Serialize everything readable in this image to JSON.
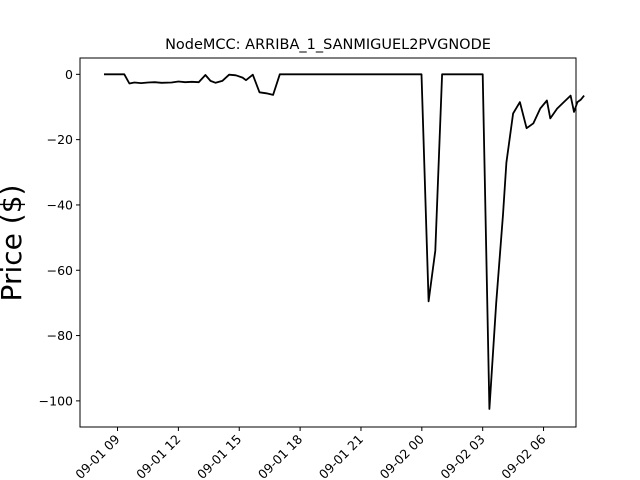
{
  "chart_data": {
    "type": "line",
    "title": "NodeMCC: ARRIBA_1_SANMIGUEL2PVGNODE",
    "xlabel": "",
    "ylabel": "Price ($)",
    "x_axis": "datetime",
    "xlim": [
      "2023-09-01 07:09",
      "2023-09-02 07:36"
    ],
    "ylim": [
      -108,
      5
    ],
    "x_ticks": [
      "2023-09-01 09:00",
      "2023-09-01 12:00",
      "2023-09-01 15:00",
      "2023-09-01 18:00",
      "2023-09-01 21:00",
      "2023-09-02 00:00",
      "2023-09-02 03:00",
      "2023-09-02 06:00"
    ],
    "x_tick_labels": [
      "09-01 09",
      "09-01 12",
      "09-01 15",
      "09-01 18",
      "09-01 21",
      "09-02 00",
      "09-02 03",
      "09-02 06"
    ],
    "y_ticks": [
      0,
      -20,
      -40,
      -60,
      -80,
      -100
    ],
    "y_tick_labels": [
      "0",
      "−20",
      "−40",
      "−60",
      "−80",
      "−100"
    ],
    "grid": false,
    "series": [
      {
        "color": "#000000",
        "points": [
          [
            "2023-09-01 08:20",
            0
          ],
          [
            "2023-09-01 08:40",
            0
          ],
          [
            "2023-09-01 09:00",
            0
          ],
          [
            "2023-09-01 09:20",
            0
          ],
          [
            "2023-09-01 09:35",
            -2.8
          ],
          [
            "2023-09-01 09:50",
            -2.5
          ],
          [
            "2023-09-01 10:10",
            -2.7
          ],
          [
            "2023-09-01 10:30",
            -2.5
          ],
          [
            "2023-09-01 10:50",
            -2.4
          ],
          [
            "2023-09-01 11:10",
            -2.6
          ],
          [
            "2023-09-01 11:40",
            -2.5
          ],
          [
            "2023-09-01 12:00",
            -2.2
          ],
          [
            "2023-09-01 12:20",
            -2.4
          ],
          [
            "2023-09-01 12:40",
            -2.3
          ],
          [
            "2023-09-01 13:00",
            -2.4
          ],
          [
            "2023-09-01 13:20",
            -0.2
          ],
          [
            "2023-09-01 13:35",
            -2.0
          ],
          [
            "2023-09-01 13:50",
            -2.6
          ],
          [
            "2023-09-01 14:10",
            -2.0
          ],
          [
            "2023-09-01 14:30",
            -0.1
          ],
          [
            "2023-09-01 14:50",
            -0.3
          ],
          [
            "2023-09-01 15:10",
            -1.0
          ],
          [
            "2023-09-01 15:20",
            -1.8
          ],
          [
            "2023-09-01 15:40",
            -0.1
          ],
          [
            "2023-09-01 16:00",
            -5.5
          ],
          [
            "2023-09-01 16:20",
            -5.8
          ],
          [
            "2023-09-01 16:40",
            -6.3
          ],
          [
            "2023-09-01 17:00",
            0
          ],
          [
            "2023-09-01 19:00",
            0
          ],
          [
            "2023-09-01 22:00",
            0
          ],
          [
            "2023-09-02 01:00",
            0
          ],
          [
            "2023-09-01 23:59",
            0
          ],
          [
            "2023-09-02 00:20",
            -69.5
          ],
          [
            "2023-09-02 00:40",
            -54
          ],
          [
            "2023-09-02 01:00",
            0
          ],
          [
            "2023-09-02 02:00",
            0
          ],
          [
            "2023-09-02 02:40",
            0
          ],
          [
            "2023-09-02 03:00",
            0
          ],
          [
            "2023-09-02 03:20",
            -102.5
          ],
          [
            "2023-09-02 03:40",
            -70
          ],
          [
            "2023-09-02 04:00",
            -43
          ],
          [
            "2023-09-02 04:10",
            -27
          ],
          [
            "2023-09-02 04:30",
            -12
          ],
          [
            "2023-09-02 04:50",
            -8.5
          ],
          [
            "2023-09-02 05:10",
            -16.5
          ],
          [
            "2023-09-02 05:30",
            -15
          ],
          [
            "2023-09-02 05:50",
            -10.5
          ],
          [
            "2023-09-02 06:10",
            -8
          ],
          [
            "2023-09-02 06:20",
            -13.5
          ],
          [
            "2023-09-02 06:40",
            -10.5
          ],
          [
            "2023-09-02 07:00",
            -8.5
          ],
          [
            "2023-09-02 07:20",
            -6.5
          ],
          [
            "2023-09-02 07:30",
            -11.5
          ],
          [
            "2023-09-02 07:40",
            -8.5
          ],
          [
            "2023-09-02 07:50",
            -7.8
          ],
          [
            "2023-09-02 08:00",
            -6.5
          ]
        ]
      }
    ]
  }
}
